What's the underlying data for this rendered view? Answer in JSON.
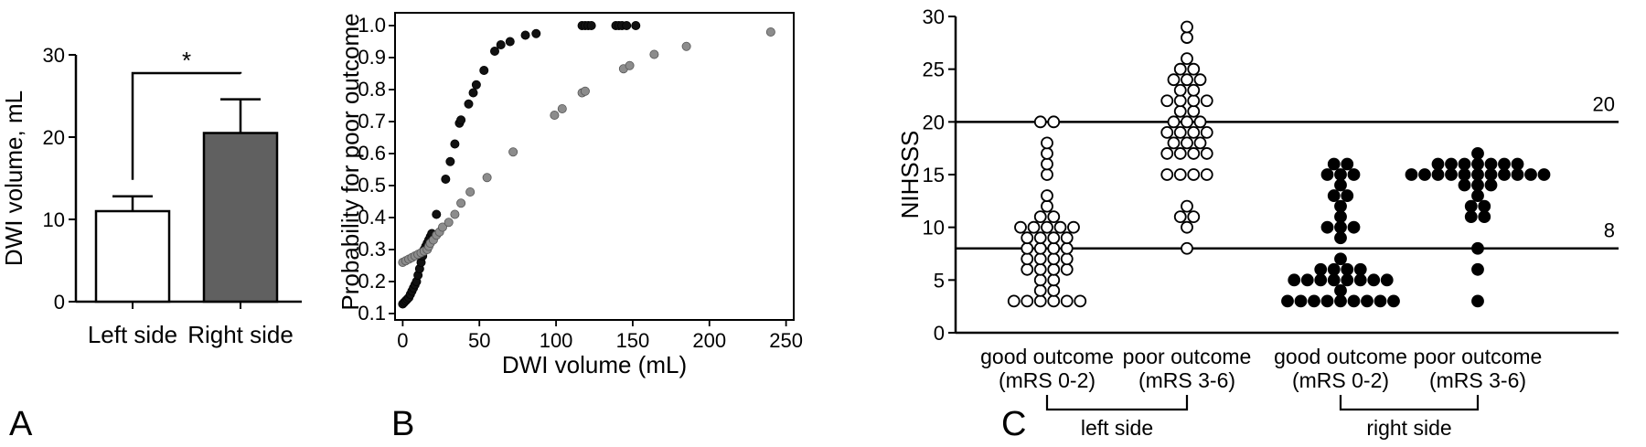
{
  "figure": {
    "panels": [
      "A",
      "B",
      "C"
    ]
  },
  "chart_data": [
    {
      "type": "bar",
      "panel": "A",
      "categories": [
        "Left side",
        "Right side"
      ],
      "values": [
        11.0,
        20.5
      ],
      "error_upper": [
        12.8,
        24.6
      ],
      "bar_colors": [
        "#ffffff",
        "#606060"
      ],
      "ylabel": "DWI volume, mL",
      "xlabel": "",
      "ylim": [
        0,
        30
      ],
      "yticks": [
        0,
        10,
        20,
        30
      ],
      "significance": "*",
      "grid": false
    },
    {
      "type": "scatter",
      "panel": "B",
      "xlabel": "DWI volume (mL)",
      "ylabel": "Probability for poor outcome",
      "xlim": [
        -5,
        255
      ],
      "ylim": [
        0.08,
        1.04
      ],
      "xticks": [
        0,
        50,
        100,
        150,
        200,
        250
      ],
      "yticks": [
        0.1,
        0.2,
        0.3,
        0.4,
        0.5,
        0.6,
        0.7,
        0.8,
        0.9,
        1.0
      ],
      "grid": false,
      "series": [
        {
          "color": "#111111",
          "points": [
            [
              0,
              0.13
            ],
            [
              1,
              0.135
            ],
            [
              2,
              0.14
            ],
            [
              3,
              0.145
            ],
            [
              4,
              0.15
            ],
            [
              5,
              0.16
            ],
            [
              6,
              0.17
            ],
            [
              7,
              0.18
            ],
            [
              8,
              0.19
            ],
            [
              9,
              0.2
            ],
            [
              10,
              0.22
            ],
            [
              11,
              0.24
            ],
            [
              12,
              0.26
            ],
            [
              13,
              0.28
            ],
            [
              14,
              0.3
            ],
            [
              15,
              0.31
            ],
            [
              16,
              0.32
            ],
            [
              17,
              0.33
            ],
            [
              18,
              0.34
            ],
            [
              19,
              0.35
            ],
            [
              22,
              0.41
            ],
            [
              28,
              0.52
            ],
            [
              31,
              0.575
            ],
            [
              34,
              0.63
            ],
            [
              37,
              0.695
            ],
            [
              38,
              0.705
            ],
            [
              43,
              0.755
            ],
            [
              46,
              0.79
            ],
            [
              48,
              0.815
            ],
            [
              53,
              0.86
            ],
            [
              60,
              0.92
            ],
            [
              64,
              0.94
            ],
            [
              70,
              0.95
            ],
            [
              80,
              0.97
            ],
            [
              87,
              0.975
            ],
            [
              117,
              1.0
            ],
            [
              119,
              1.0
            ],
            [
              121,
              1.0
            ],
            [
              123,
              1.0
            ],
            [
              139,
              1.0
            ],
            [
              141,
              1.0
            ],
            [
              143,
              1.0
            ],
            [
              146,
              1.0
            ],
            [
              152,
              1.0
            ]
          ]
        },
        {
          "color": "#8c8c8c",
          "points": [
            [
              0,
              0.26
            ],
            [
              2,
              0.265
            ],
            [
              4,
              0.27
            ],
            [
              6,
              0.275
            ],
            [
              8,
              0.28
            ],
            [
              10,
              0.285
            ],
            [
              12,
              0.29
            ],
            [
              14,
              0.295
            ],
            [
              16,
              0.3
            ],
            [
              17,
              0.31
            ],
            [
              18,
              0.32
            ],
            [
              20,
              0.33
            ],
            [
              22,
              0.345
            ],
            [
              24,
              0.355
            ],
            [
              26,
              0.37
            ],
            [
              30,
              0.385
            ],
            [
              34,
              0.41
            ],
            [
              38,
              0.445
            ],
            [
              44,
              0.48
            ],
            [
              55,
              0.525
            ],
            [
              72,
              0.605
            ],
            [
              99,
              0.72
            ],
            [
              104,
              0.74
            ],
            [
              117,
              0.79
            ],
            [
              119,
              0.795
            ],
            [
              144,
              0.865
            ],
            [
              148,
              0.875
            ],
            [
              164,
              0.91
            ],
            [
              185,
              0.935
            ],
            [
              240,
              0.98
            ]
          ]
        }
      ]
    },
    {
      "type": "scatter",
      "panel": "C",
      "ylabel": "NIHSSS",
      "ylim": [
        0,
        30
      ],
      "yticks": [
        0,
        5,
        10,
        15,
        20,
        25,
        30
      ],
      "grid": false,
      "reference_lines": [
        {
          "y": 20,
          "label": "20"
        },
        {
          "y": 8,
          "label": "8"
        }
      ],
      "categories": [
        {
          "line1": "good outcome",
          "line2": "(mRS 0-2)"
        },
        {
          "line1": "poor outcome",
          "line2": "(mRS 3-6)"
        },
        {
          "line1": "good outcome",
          "line2": "(mRS 0-2)"
        },
        {
          "line1": "poor outcome",
          "line2": "(mRS 3-6)"
        }
      ],
      "groups": [
        {
          "label": "left side",
          "categories": [
            0,
            1
          ]
        },
        {
          "label": "right side",
          "categories": [
            2,
            3
          ]
        }
      ],
      "series": [
        {
          "category": 0,
          "filled": false,
          "values": [
            20,
            20,
            18,
            17,
            16,
            15,
            13,
            12,
            11,
            11,
            10,
            10,
            10,
            10,
            10,
            9,
            9,
            9,
            9,
            8,
            8,
            8,
            8,
            7,
            7,
            7,
            7,
            6,
            6,
            6,
            6,
            5,
            5,
            4,
            4,
            3,
            3,
            3,
            3,
            3,
            3
          ]
        },
        {
          "category": 1,
          "filled": false,
          "values": [
            29,
            28,
            26,
            25,
            25,
            24,
            24,
            24,
            23,
            23,
            22,
            22,
            22,
            22,
            21,
            21,
            20,
            20,
            20,
            19,
            19,
            19,
            19,
            18,
            18,
            18,
            17,
            17,
            17,
            17,
            15,
            15,
            15,
            15,
            12,
            11,
            11,
            10,
            8
          ]
        },
        {
          "category": 2,
          "filled": true,
          "values": [
            16,
            16,
            15,
            15,
            15,
            14,
            13,
            13,
            12,
            11,
            10,
            10,
            10,
            9,
            7,
            6,
            6,
            6,
            6,
            5,
            5,
            5,
            5,
            5,
            5,
            5,
            5,
            4,
            3,
            3,
            3,
            3,
            3,
            3,
            3,
            3,
            3
          ]
        },
        {
          "category": 3,
          "filled": true,
          "values": [
            17,
            16,
            16,
            16,
            16,
            16,
            16,
            16,
            15,
            15,
            15,
            15,
            15,
            15,
            15,
            15,
            15,
            15,
            15,
            14,
            14,
            14,
            13,
            12,
            12,
            11,
            11,
            8,
            6,
            3
          ]
        }
      ]
    }
  ]
}
